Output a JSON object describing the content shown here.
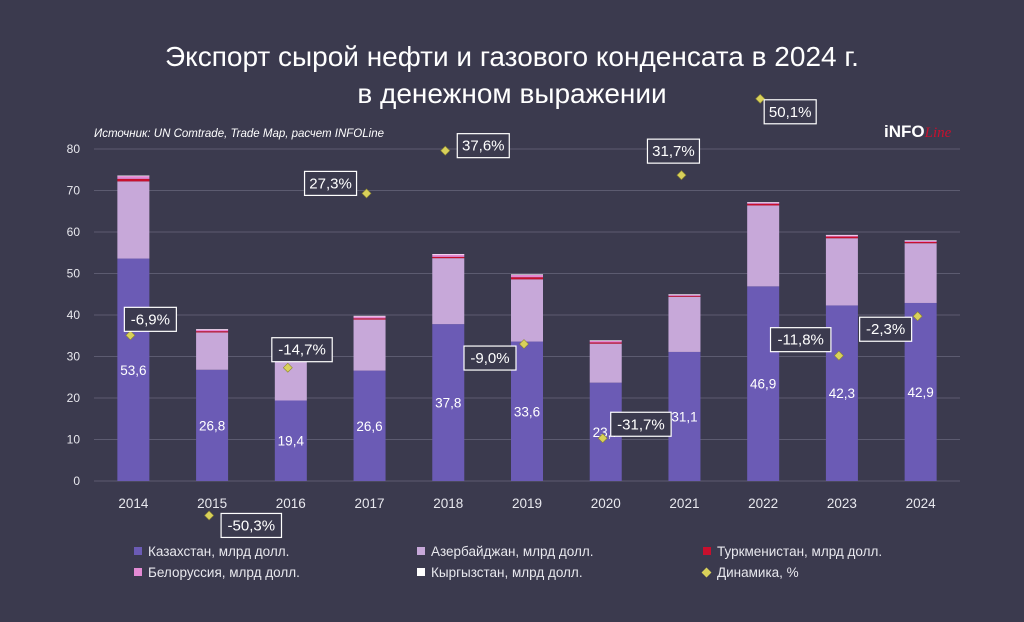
{
  "title_line1": "Экспорт сырой нефти и газового конденсата в 2024 г.",
  "title_line2": "в денежном выражении",
  "source": "Источник: UN Comtrade, Trade Map, расчет INFOLine",
  "logo": {
    "main": "iNFO",
    "script": "Line"
  },
  "colors": {
    "background": "#3b3a4e",
    "kazakhstan": "#6b5bb5",
    "azerbaijan": "#c7a8d9",
    "turkmenistan": "#c8102e",
    "belarus": "#e38ad4",
    "kyrgyzstan": "#ffffff",
    "dynamics": "#d9d15a"
  },
  "chart_data": {
    "type": "bar",
    "stacked": true,
    "categories": [
      "2014",
      "2015",
      "2016",
      "2017",
      "2018",
      "2019",
      "2020",
      "2021",
      "2022",
      "2023",
      "2024"
    ],
    "ylim": [
      0,
      80
    ],
    "yticks": [
      "0",
      "10",
      "20",
      "30",
      "40",
      "50",
      "60",
      "70",
      "80"
    ],
    "grid": true,
    "legend_position": "bottom",
    "series": [
      {
        "name": "Казахстан, млрд долл.",
        "color": "#6b5bb5",
        "values": [
          53.6,
          26.8,
          19.4,
          26.6,
          37.8,
          33.6,
          23.7,
          31.1,
          46.9,
          42.3,
          42.9
        ],
        "labels": [
          "53,6",
          "26,8",
          "19,4",
          "26,6",
          "37,8",
          "33,6",
          "23,7",
          "31,1",
          "46,9",
          "42,3",
          "42,9"
        ]
      },
      {
        "name": "Азербайджан, млрд долл.",
        "color": "#c7a8d9",
        "values": [
          18.6,
          9.0,
          10.3,
          12.3,
          15.9,
          15.0,
          9.4,
          13.3,
          19.5,
          16.2,
          14.4
        ]
      },
      {
        "name": "Туркменистан, млрд долл.",
        "color": "#c8102e",
        "values": [
          0.6,
          0.3,
          0.8,
          0.3,
          0.3,
          0.5,
          0.3,
          0.2,
          0.4,
          0.4,
          0.3
        ]
      },
      {
        "name": "Белоруссия, млрд долл.",
        "color": "#e38ad4",
        "values": [
          0.7,
          0.4,
          0.8,
          0.5,
          0.6,
          0.6,
          0.4,
          0.3,
          0.3,
          0.3,
          0.3
        ]
      },
      {
        "name": "Кыргызстан, млрд долл.",
        "color": "#ffffff",
        "values": [
          0.1,
          0.1,
          0.1,
          0.1,
          0.1,
          0.1,
          0.1,
          0.1,
          0.1,
          0.1,
          0.1
        ]
      }
    ],
    "dynamics": {
      "name": "Динамика, %",
      "color": "#d9d15a",
      "values": [
        -6.9,
        -50.3,
        -14.7,
        27.3,
        37.6,
        -9.0,
        -31.7,
        31.7,
        50.1,
        -11.8,
        -2.3
      ],
      "labels": [
        "-6,9%",
        "-50,3%",
        "-14,7%",
        "27,3%",
        "37,6%",
        "-9,0%",
        "-31,7%",
        "31,7%",
        "50,1%",
        "-11,8%",
        "-2,3%"
      ]
    }
  }
}
